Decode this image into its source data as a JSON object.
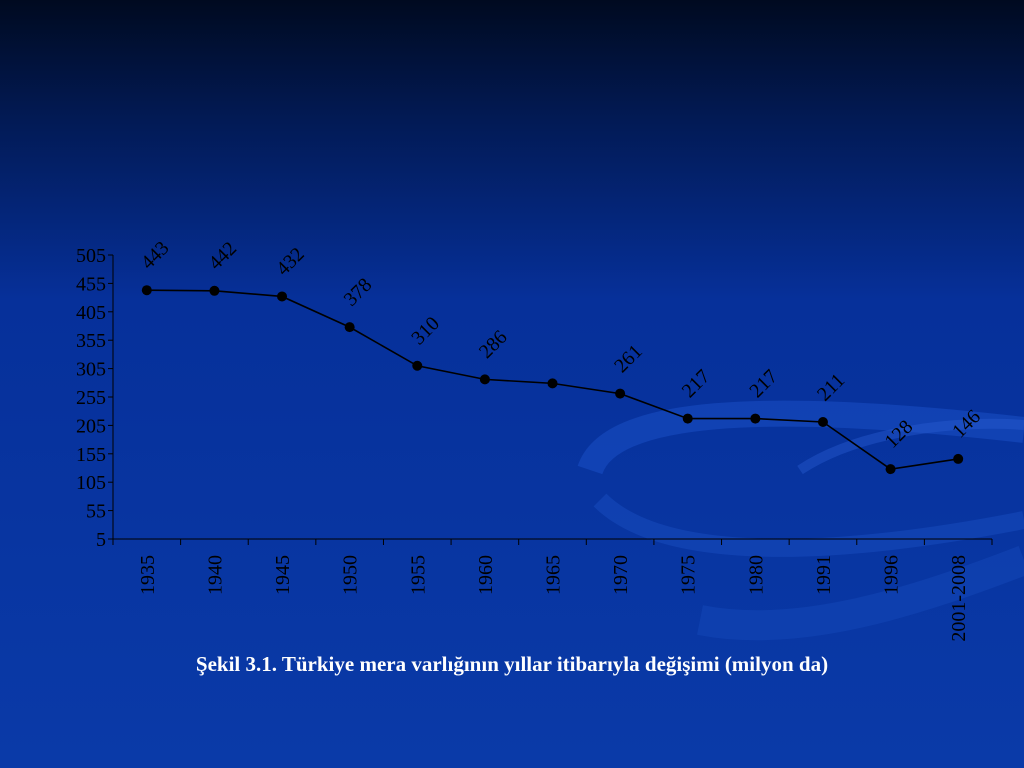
{
  "caption": "Şekil 3.1. Türkiye mera varlığının yıllar itibarıyla değişimi (milyon da)",
  "chart_data": {
    "type": "line",
    "title": "",
    "xlabel": "",
    "ylabel": "",
    "categories": [
      "1935",
      "1940",
      "1945",
      "1950",
      "1955",
      "1960",
      "1965",
      "1970",
      "1975",
      "1980",
      "1991",
      "1996",
      "2001-2008"
    ],
    "values": [
      443,
      442,
      432,
      378,
      310,
      286,
      279,
      261,
      217,
      217,
      211,
      128,
      146
    ],
    "data_labels": [
      "443",
      "442",
      "432",
      "378",
      "310",
      "286",
      "",
      "261",
      "217",
      "217",
      "211",
      "128",
      "146"
    ],
    "yticks": [
      5,
      55,
      105,
      155,
      205,
      255,
      305,
      355,
      405,
      455,
      505
    ],
    "ylim": [
      5,
      505
    ],
    "grid": false,
    "legend": "none",
    "colors": {
      "line": "#000000",
      "marker": "#000000",
      "text": "#000000",
      "axis": "#000000"
    }
  }
}
